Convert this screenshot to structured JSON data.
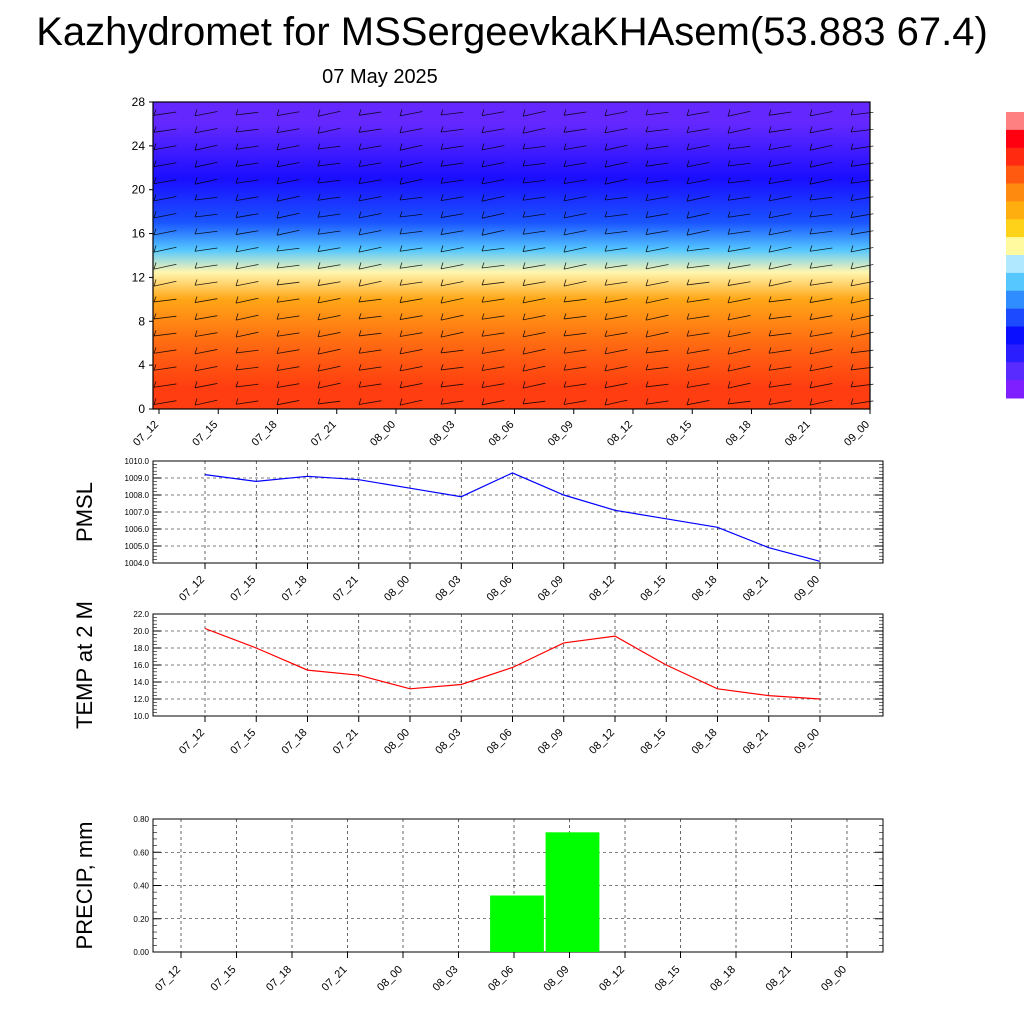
{
  "title": "Kazhydromet for MSSergeevkaKHAsem(53.883 67.4)",
  "subtitle": "07 May 2025",
  "x_labels": [
    "07_12",
    "07_15",
    "07_18",
    "07_21",
    "08_00",
    "08_03",
    "08_06",
    "08_09",
    "08_12",
    "08_15",
    "08_18",
    "08_21",
    "09_00"
  ],
  "colors": {
    "pmsl_line": "#0000ff",
    "temp_line": "#ff0000",
    "precip_bar": "#00ff00",
    "grid": "#000000"
  },
  "colorbar": {
    "stops": [
      "#7f1fff",
      "#5a2bff",
      "#2a1eff",
      "#0a10ff",
      "#1c4bff",
      "#2f8dff",
      "#56c8ff",
      "#b0e8ff",
      "#fff9a0",
      "#ffd21a",
      "#ffae10",
      "#ff8a10",
      "#ff5a10",
      "#ff2a10",
      "#ff0010",
      "#ff8080"
    ]
  },
  "chart_data": [
    {
      "type": "heatmap",
      "name": "cross-section",
      "xlabel": "",
      "ylabel": "",
      "x": [
        "07_12",
        "07_15",
        "07_18",
        "07_21",
        "08_00",
        "08_03",
        "08_06",
        "08_09",
        "08_12",
        "08_15",
        "08_18",
        "08_21",
        "09_00"
      ],
      "yticks": [
        0,
        4,
        8,
        12,
        16,
        20,
        24,
        28
      ],
      "ylim": [
        0,
        28
      ],
      "color_bands": [
        {
          "y": [
            0,
            4
          ],
          "color": "#ff3d10"
        },
        {
          "y": [
            4,
            8
          ],
          "color": "#ff6a12"
        },
        {
          "y": [
            8,
            12
          ],
          "color": "#ffa616"
        },
        {
          "y": [
            12,
            13
          ],
          "color": "#fff6b0"
        },
        {
          "y": [
            13,
            16
          ],
          "color": "#55c8ff"
        },
        {
          "y": [
            16,
            18
          ],
          "color": "#1a55ff"
        },
        {
          "y": [
            18,
            24
          ],
          "color": "#1a0eff"
        },
        {
          "y": [
            24,
            28
          ],
          "color": "#6428ff"
        }
      ],
      "has_wind_barbs": true
    },
    {
      "type": "line",
      "name": "pmsl",
      "ylabel": "PMSL",
      "x": [
        "07_12",
        "07_15",
        "07_18",
        "07_21",
        "08_00",
        "08_03",
        "08_06",
        "08_09",
        "08_12",
        "08_15",
        "08_18",
        "08_21",
        "09_00"
      ],
      "values": [
        1009.2,
        1008.8,
        1009.1,
        1008.9,
        1008.4,
        1007.9,
        1009.3,
        1008.0,
        1007.1,
        1006.6,
        1006.1,
        1004.9,
        1004.1
      ],
      "ylim": [
        1004.0,
        1010.0
      ],
      "yticks": [
        "1004.0",
        "1005.0",
        "1006.0",
        "1007.0",
        "1008.0",
        "1009.0",
        "1010.0"
      ],
      "grid": true
    },
    {
      "type": "line",
      "name": "temp",
      "ylabel": "TEMP at 2 M",
      "x": [
        "07_12",
        "07_15",
        "07_18",
        "07_21",
        "08_00",
        "08_03",
        "08_06",
        "08_09",
        "08_12",
        "08_15",
        "08_18",
        "08_21",
        "09_00"
      ],
      "values": [
        20.3,
        18.0,
        15.4,
        14.8,
        13.2,
        13.7,
        15.7,
        18.6,
        19.4,
        16.0,
        13.2,
        12.4,
        12.0
      ],
      "ylim": [
        10.0,
        22.0
      ],
      "yticks": [
        "10.0",
        "12.0",
        "14.0",
        "16.0",
        "18.0",
        "20.0",
        "22.0"
      ],
      "grid": true
    },
    {
      "type": "bar",
      "name": "precip",
      "ylabel": "PRECIP, mm",
      "categories": [
        "07_12",
        "07_15",
        "07_18",
        "07_21",
        "08_00",
        "08_03",
        "08_06",
        "08_09",
        "08_12",
        "08_15",
        "08_18",
        "08_21",
        "09_00"
      ],
      "values": [
        0,
        0,
        0,
        0,
        0,
        0,
        0.34,
        0.72,
        0,
        0,
        0,
        0,
        0
      ],
      "ylim": [
        0,
        0.8
      ],
      "yticks": [
        "0.00",
        "0.20",
        "0.40",
        "0.60",
        "0.80"
      ],
      "grid": true
    }
  ]
}
